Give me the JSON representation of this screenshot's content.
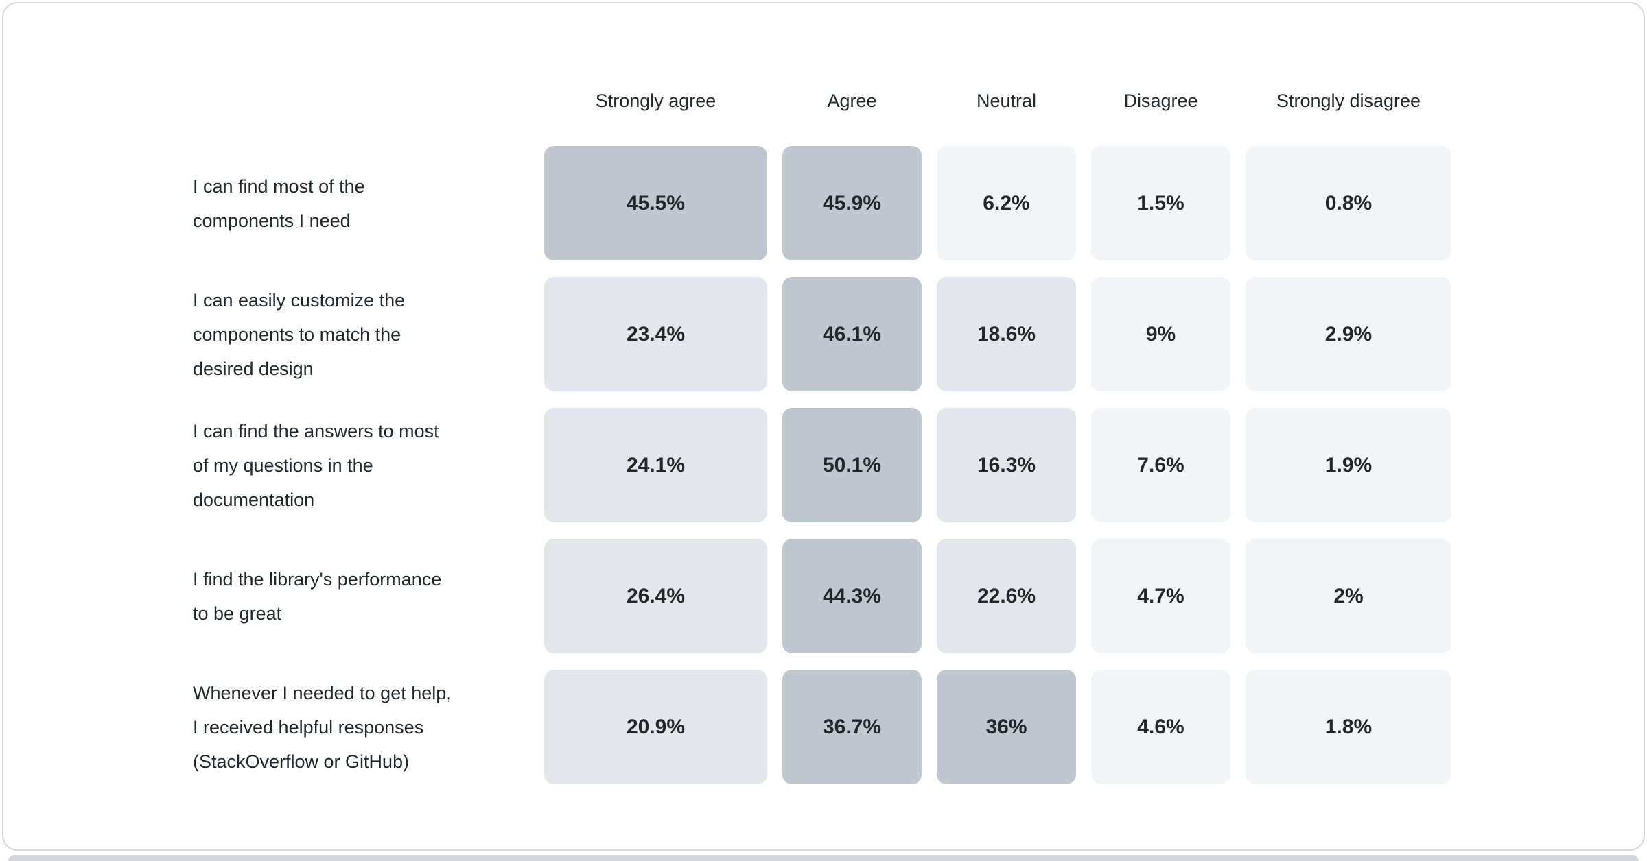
{
  "page": {
    "card_border_color": "#d3d7dc",
    "bottom_band_color": "#d3d6db",
    "text_color": "#21272a"
  },
  "chart_data": {
    "type": "heatmap",
    "title": "",
    "legend": "none",
    "columns": [
      "Strongly agree",
      "Agree",
      "Neutral",
      "Disagree",
      "Strongly disagree"
    ],
    "palette": {
      "high": "#c1c7cf",
      "mid": "#e3e7eb",
      "low": "#f2f4f7"
    },
    "rows": [
      {
        "label": "I can find most of the\ncomponents I need",
        "values": [
          45.5,
          45.9,
          6.2,
          1.5,
          0.8
        ],
        "display": [
          "45.5%",
          "45.9%",
          "6.2%",
          "1.5%",
          "0.8%"
        ],
        "tiers": [
          "high",
          "high",
          "low",
          "low",
          "low"
        ]
      },
      {
        "label": "I can easily customize the\ncomponents to match the\ndesired design",
        "values": [
          23.4,
          46.1,
          18.6,
          9,
          2.9
        ],
        "display": [
          "23.4%",
          "46.1%",
          "18.6%",
          "9%",
          "2.9%"
        ],
        "tiers": [
          "mid",
          "high",
          "mid",
          "low",
          "low"
        ]
      },
      {
        "label": "I can find the answers to most\nof my questions in the\ndocumentation",
        "values": [
          24.1,
          50.1,
          16.3,
          7.6,
          1.9
        ],
        "display": [
          "24.1%",
          "50.1%",
          "16.3%",
          "7.6%",
          "1.9%"
        ],
        "tiers": [
          "mid",
          "high",
          "mid",
          "low",
          "low"
        ]
      },
      {
        "label": "I find the library's performance\nto be great",
        "values": [
          26.4,
          44.3,
          22.6,
          4.7,
          2
        ],
        "display": [
          "26.4%",
          "44.3%",
          "22.6%",
          "4.7%",
          "2%"
        ],
        "tiers": [
          "mid",
          "high",
          "mid",
          "low",
          "low"
        ]
      },
      {
        "label": "Whenever I needed to get help,\nI received helpful responses\n(StackOverflow or GitHub)",
        "values": [
          20.9,
          36.7,
          36,
          4.6,
          1.8
        ],
        "display": [
          "20.9%",
          "36.7%",
          "36%",
          "4.6%",
          "1.8%"
        ],
        "tiers": [
          "mid",
          "high",
          "high",
          "low",
          "low"
        ]
      }
    ]
  }
}
